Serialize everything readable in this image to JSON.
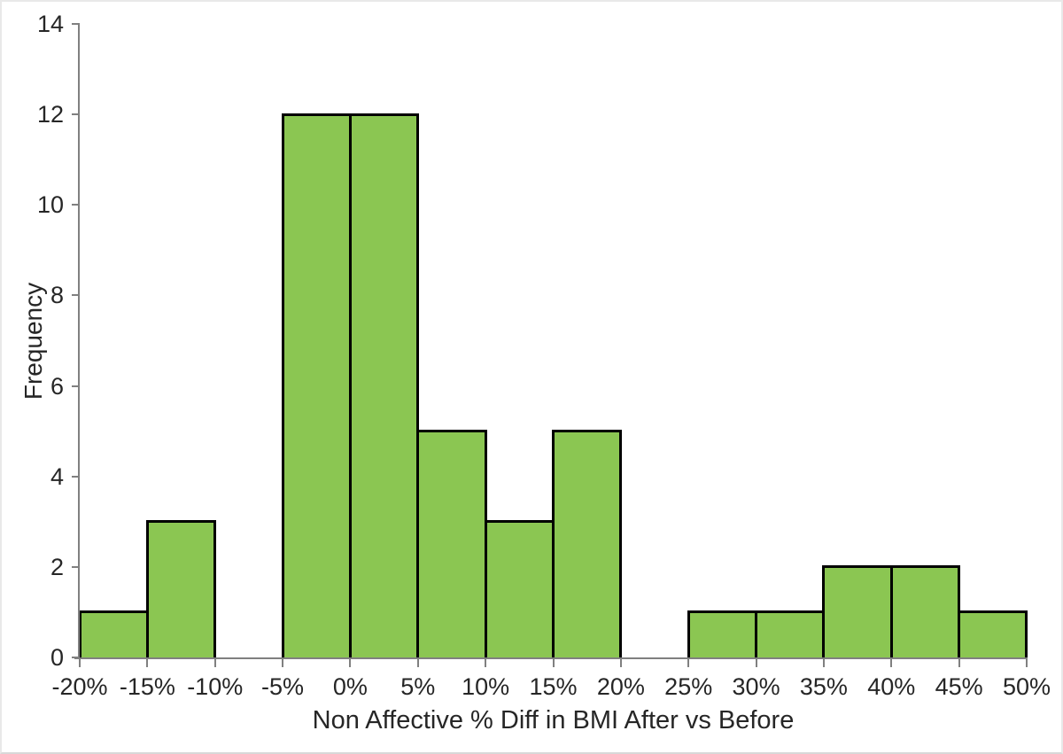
{
  "chart_data": {
    "type": "bar",
    "subtype": "histogram",
    "title": "",
    "xlabel": "Non Affective % Diff in BMI After vs Before",
    "ylabel": "Frequency",
    "bin_edge_labels": [
      "-20%",
      "-15%",
      "-10%",
      "-5%",
      "0%",
      "5%",
      "10%",
      "15%",
      "20%",
      "25%",
      "30%",
      "35%",
      "40%",
      "45%",
      "50%"
    ],
    "bin_width_percent": 5,
    "frequencies": [
      1,
      3,
      0,
      12,
      12,
      5,
      3,
      5,
      0,
      1,
      1,
      2,
      2,
      1
    ],
    "yticks": [
      0,
      2,
      4,
      6,
      8,
      10,
      12,
      14
    ],
    "ylim": [
      0,
      14
    ],
    "grid": false,
    "legend": false,
    "colors": {
      "bar_fill": "#8BC652",
      "bar_border": "#000000",
      "axis": "#808080",
      "text": "#262626",
      "background": "#FFFFFF",
      "frame_border": "#E9E9E9"
    }
  }
}
